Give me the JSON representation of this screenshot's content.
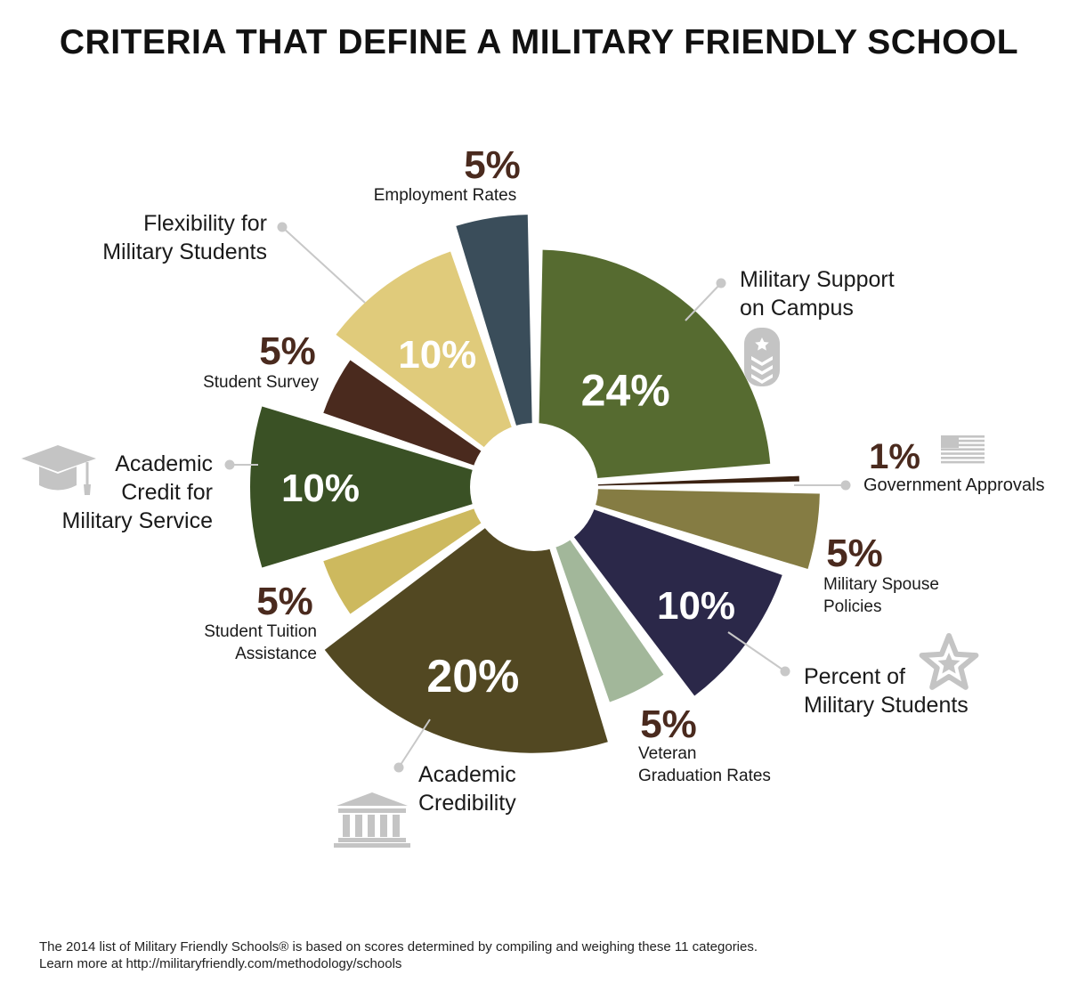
{
  "title": "CRITERIA THAT DEFINE A MILITARY FRIENDLY SCHOOL",
  "footer": {
    "line1": "The 2014 list of Military Friendly Schools® is based on scores determined by compiling and weighing these 11 categories.",
    "line2": "Learn more at http://militaryfriendly.com/methodology/schools"
  },
  "colors": {
    "pct_label_dark": "#4a2a1e",
    "pct_label_light": "#ffffff",
    "leader_line": "#c8c8c8",
    "icon_gray": "#c4c4c4"
  },
  "chart_data": {
    "type": "pie",
    "title": "CRITERIA THAT DEFINE A MILITARY FRIENDLY SCHOOL",
    "slices": [
      {
        "name": "Military Support on Campus",
        "label_lines": [
          "Military Support",
          "on Campus"
        ],
        "value": 24,
        "pct_text": "24%",
        "color": "#566b30",
        "icon": "rank-badge-icon"
      },
      {
        "name": "Government Approvals",
        "label_lines": [
          "Government Approvals"
        ],
        "value": 1,
        "pct_text": "1%",
        "color": "#3b2212",
        "icon": "flag-icon"
      },
      {
        "name": "Military Spouse Policies",
        "label_lines": [
          "Military Spouse",
          "Policies"
        ],
        "value": 5,
        "pct_text": "5%",
        "color": "#857c43",
        "icon": ""
      },
      {
        "name": "Percent of Military Students",
        "label_lines": [
          "Percent of",
          "Military Students"
        ],
        "value": 10,
        "pct_text": "10%",
        "color": "#2b2849",
        "icon": "star-icon"
      },
      {
        "name": "Veteran Graduation Rates",
        "label_lines": [
          "Veteran",
          "Graduation Rates"
        ],
        "value": 5,
        "pct_text": "5%",
        "color": "#a2b79a",
        "icon": ""
      },
      {
        "name": "Academic Credibility",
        "label_lines": [
          "Academic",
          "Credibility"
        ],
        "value": 20,
        "pct_text": "20%",
        "color": "#524822",
        "icon": "building-icon"
      },
      {
        "name": "Student Tuition Assistance",
        "label_lines": [
          "Student Tuition",
          "Assistance"
        ],
        "value": 5,
        "pct_text": "5%",
        "color": "#cdb95e",
        "icon": ""
      },
      {
        "name": "Academic Credit for Military Service",
        "label_lines": [
          "Academic",
          "Credit for",
          "Military Service"
        ],
        "value": 10,
        "pct_text": "10%",
        "color": "#3a5125",
        "icon": "graduation-cap-icon"
      },
      {
        "name": "Student Survey",
        "label_lines": [
          "Student Survey"
        ],
        "value": 5,
        "pct_text": "5%",
        "color": "#4a2a1e",
        "icon": ""
      },
      {
        "name": "Flexibility for Military Students",
        "label_lines": [
          "Flexibility for",
          "Military Students"
        ],
        "value": 10,
        "pct_text": "10%",
        "color": "#e0cb7b",
        "icon": ""
      },
      {
        "name": "Employment Rates",
        "label_lines": [
          "Employment Rates"
        ],
        "value": 5,
        "pct_text": "5%",
        "color": "#3a4d5a",
        "icon": ""
      }
    ],
    "legend": "none"
  }
}
